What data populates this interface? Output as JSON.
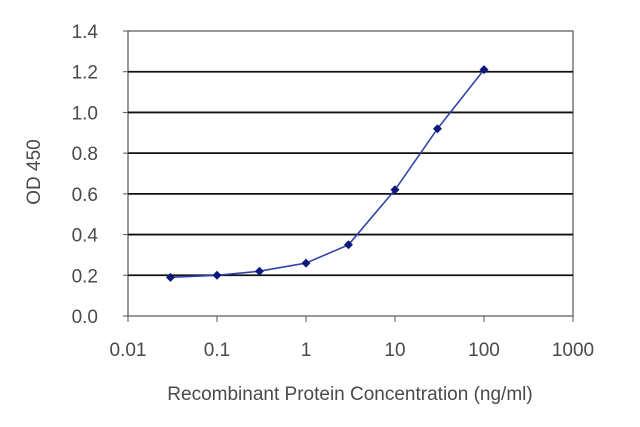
{
  "chart_data": {
    "type": "line",
    "xscale": "log",
    "xlim": [
      0.01,
      1000
    ],
    "ylim": [
      0,
      1.4
    ],
    "xticks": [
      0.01,
      0.1,
      1,
      10,
      100,
      1000
    ],
    "xtick_labels": [
      "0.01",
      "0.1",
      "1",
      "10",
      "100",
      "1000"
    ],
    "yticks": [
      0,
      0.2,
      0.4,
      0.6,
      0.8,
      1.0,
      1.2,
      1.4
    ],
    "ytick_labels": [
      "0.0",
      "0.2",
      "0.4",
      "0.6",
      "0.8",
      "1.0",
      "1.2",
      "1.4"
    ],
    "grid": "horizontal",
    "xlabel": "Recombinant Protein Concentration (ng/ml)",
    "ylabel": "OD 450",
    "title": "",
    "series": [
      {
        "x": [
          0.03,
          0.1,
          0.3,
          1,
          3,
          10,
          30,
          100
        ],
        "y": [
          0.19,
          0.2,
          0.22,
          0.26,
          0.35,
          0.62,
          0.92,
          1.21
        ]
      }
    ],
    "colors": {
      "line": "#3344aa",
      "marker": "#0a1a7a",
      "grid": "#111111",
      "axis": "#555555",
      "text": "#4a4a4a"
    }
  }
}
